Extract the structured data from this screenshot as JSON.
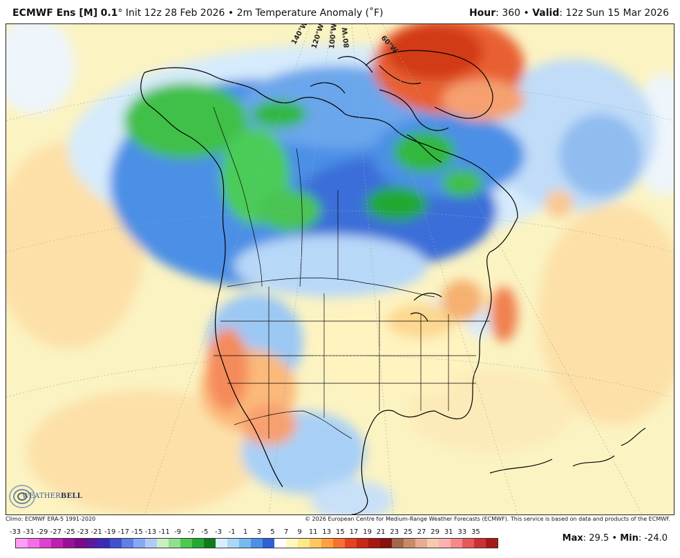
{
  "header": {
    "model": "ECMWF Ens [M]",
    "resolution": "0.1",
    "degree_symbol": "°",
    "init": "Init 12z 28 Feb 2026",
    "bullet": "•",
    "field": "2m Temperature Anomaly (˚F)",
    "hour_label": "Hour",
    "hour_value": ": 360",
    "valid_label": "Valid",
    "valid_value": ": 12z Sun 15 Mar 2026"
  },
  "map": {
    "longitude_labels": [
      "140°W",
      "120°W",
      "100°W",
      "80°W",
      "60°W"
    ]
  },
  "logo": {
    "text_a": "WEATHER",
    "text_b": "BELL"
  },
  "footer": {
    "climo": "Climo: ECMWF ERA-5 1991-2020",
    "copyright": "© 2026 European Centre for Medium-Range Weather Forecasts (ECMWF). This service is based on data and products of the ECMWF."
  },
  "legend": {
    "labels": [
      "-33",
      "-31",
      "-29",
      "-27",
      "-25",
      "-23",
      "-21",
      "-19",
      "-17",
      "-15",
      "-13",
      "-11",
      "-9",
      "-7",
      "-5",
      "-3",
      "-1",
      "1",
      "3",
      "5",
      "7",
      "9",
      "11",
      "13",
      "15",
      "17",
      "19",
      "21",
      "23",
      "25",
      "27",
      "29",
      "31",
      "33",
      "35"
    ],
    "colors": [
      "#ff9cf5",
      "#f56ee8",
      "#e040d0",
      "#c020b0",
      "#9a1098",
      "#7a0a88",
      "#5a1aa0",
      "#3a2ab8",
      "#4050d0",
      "#6080e8",
      "#88a8f4",
      "#b0cafc",
      "#c8f0c0",
      "#90e090",
      "#50c850",
      "#22aa30",
      "#107a1a",
      "#d8eefc",
      "#a8d8f8",
      "#78b8f0",
      "#4a90e8",
      "#2d60d8",
      "#ffffff",
      "#fff8c0",
      "#ffe88a",
      "#ffc860",
      "#ffa040",
      "#f87030",
      "#e84020",
      "#c82818",
      "#a81810",
      "#881010",
      "#a06848",
      "#c88a6a",
      "#e8aa90",
      "#f6c8b0",
      "#ffb0b0",
      "#f88888",
      "#e85858",
      "#cc3030",
      "#a81818"
    ]
  },
  "stats": {
    "max_label": "Max",
    "max_value": ": 29.5",
    "min_label": "Min",
    "min_value": ": -24.0"
  }
}
